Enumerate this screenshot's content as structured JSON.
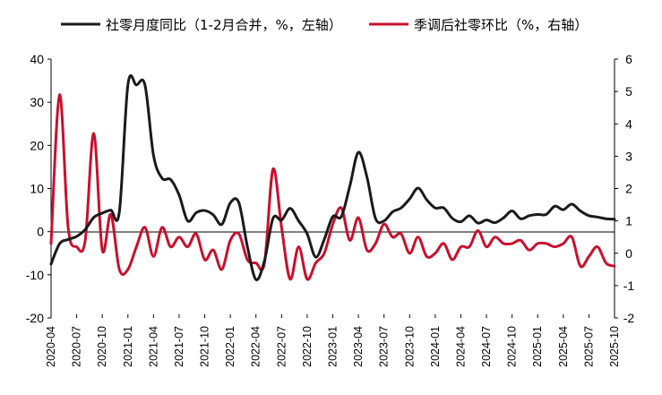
{
  "chart_data": {
    "type": "line",
    "legend": {
      "placement": "top"
    },
    "grid": false,
    "x_ticks": [
      "2020-04",
      "2020-07",
      "2020-10",
      "2021-01",
      "2021-04",
      "2021-07",
      "2021-10",
      "2022-01",
      "2022-04",
      "2022-07",
      "2022-10",
      "2023-01",
      "2023-04",
      "2023-07",
      "2023-10",
      "2024-01",
      "2024-04",
      "2024-07",
      "2024-10",
      "2025-01",
      "2025-04",
      "2025-07",
      "2025-10"
    ],
    "y_left": {
      "range": [
        -20,
        40
      ],
      "ticks": [
        "-20",
        "-10",
        "0",
        "10",
        "20",
        "30",
        "40"
      ]
    },
    "y_right": {
      "range": [
        -2,
        6
      ],
      "ticks": [
        "-2",
        "-1",
        "0",
        "1",
        "2",
        "3",
        "4",
        "5",
        "6"
      ]
    },
    "x": [
      "2020-04",
      "2020-05",
      "2020-06",
      "2020-07",
      "2020-08",
      "2020-09",
      "2020-10",
      "2020-11",
      "2020-12",
      "2021-01",
      "2021-02",
      "2021-03",
      "2021-04",
      "2021-05",
      "2021-06",
      "2021-07",
      "2021-08",
      "2021-09",
      "2021-10",
      "2021-11",
      "2021-12",
      "2022-01",
      "2022-02",
      "2022-03",
      "2022-04",
      "2022-05",
      "2022-06",
      "2022-07",
      "2022-08",
      "2022-09",
      "2022-10",
      "2022-11",
      "2022-12",
      "2023-01",
      "2023-02",
      "2023-03",
      "2023-04",
      "2023-05",
      "2023-06",
      "2023-07",
      "2023-08",
      "2023-09",
      "2023-10",
      "2023-11",
      "2023-12",
      "2024-01",
      "2024-02",
      "2024-03",
      "2024-04",
      "2024-05",
      "2024-06",
      "2024-07",
      "2024-08",
      "2024-09",
      "2024-10",
      "2024-11",
      "2024-12",
      "2025-01",
      "2025-02",
      "2025-03",
      "2025-04",
      "2025-05",
      "2025-06",
      "2025-07",
      "2025-08",
      "2025-09",
      "2025-10"
    ],
    "series": [
      {
        "name": "社零月度同比（1-2月合并，%，左轴）",
        "axis": "left",
        "color": "#1a1a1a",
        "values": [
          -7.5,
          -2.8,
          -1.8,
          -1.1,
          0.5,
          3.3,
          4.3,
          5.0,
          4.6,
          34.0,
          34.0,
          34.0,
          17.7,
          12.4,
          12.1,
          8.5,
          2.5,
          4.4,
          4.9,
          3.9,
          1.7,
          6.7,
          6.7,
          -3.5,
          -11.1,
          -6.7,
          3.1,
          2.7,
          5.4,
          2.5,
          -0.5,
          -5.9,
          -1.8,
          3.5,
          3.5,
          10.6,
          18.4,
          12.7,
          3.1,
          2.5,
          4.6,
          5.5,
          7.6,
          10.1,
          7.4,
          5.5,
          5.5,
          3.1,
          2.3,
          3.7,
          2.0,
          2.7,
          2.1,
          3.2,
          4.8,
          3.0,
          3.7,
          4.0,
          4.0,
          5.9,
          5.1,
          6.4,
          4.8,
          3.7,
          3.4,
          3.0,
          2.9
        ]
      },
      {
        "name": "季调后社零环比（%，右轴）",
        "axis": "right",
        "color": "#c8102e",
        "values": [
          0.3,
          4.9,
          0.8,
          0.2,
          0.4,
          3.7,
          0.1,
          1.2,
          -0.5,
          -0.5,
          0.2,
          0.8,
          -0.1,
          0.8,
          0.2,
          0.5,
          0.2,
          0.6,
          -0.2,
          0.1,
          -0.5,
          0.4,
          0.6,
          -0.2,
          -0.3,
          -0.3,
          2.6,
          0.8,
          -0.8,
          0.2,
          -0.8,
          -0.3,
          0.0,
          0.9,
          1.4,
          0.4,
          1.1,
          0.1,
          0.3,
          0.9,
          0.5,
          0.6,
          0.0,
          0.5,
          -0.1,
          0.0,
          0.3,
          -0.2,
          0.2,
          0.2,
          0.7,
          0.2,
          0.5,
          0.3,
          0.3,
          0.4,
          0.1,
          0.3,
          0.3,
          0.2,
          0.3,
          0.5,
          -0.4,
          -0.1,
          0.2,
          -0.3,
          -0.4
        ]
      }
    ]
  }
}
